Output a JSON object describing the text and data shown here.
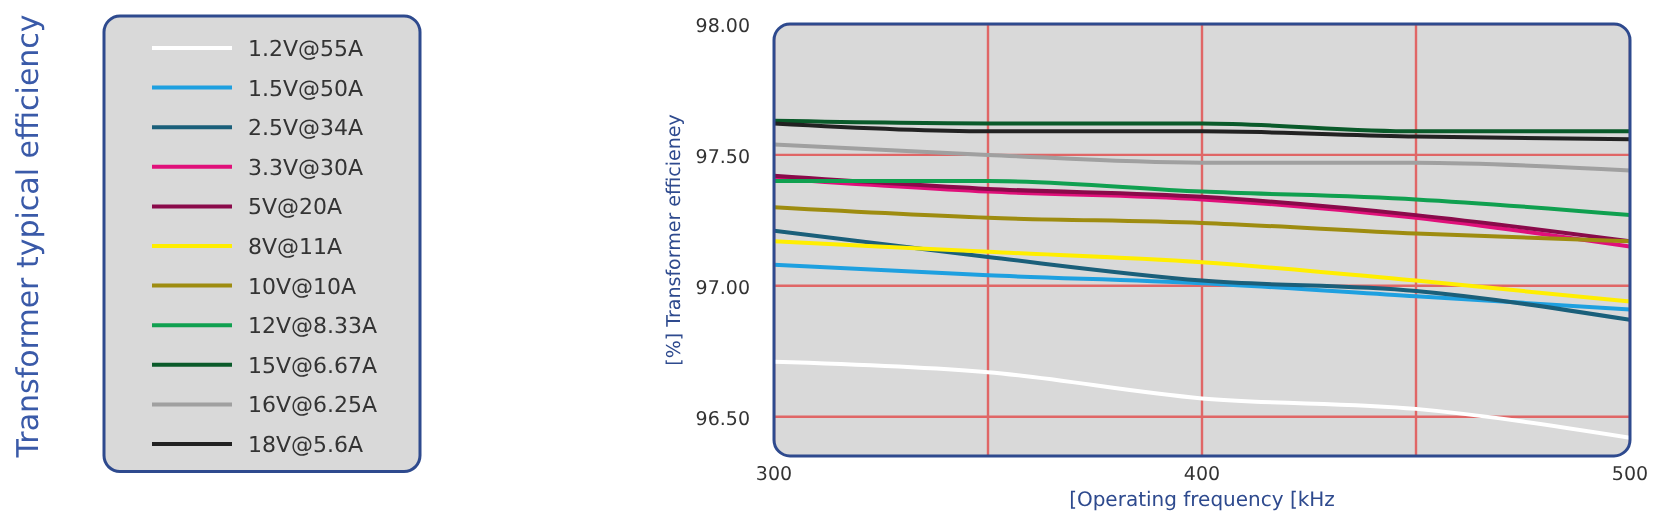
{
  "chart_data": {
    "type": "line",
    "title": "Transformer typical efficiency",
    "xlabel": "[Operating frequency [kHz",
    "ylabel": "[%] Transformer efficieney",
    "x": [
      300,
      350,
      400,
      450,
      500
    ],
    "xlim": [
      300,
      500
    ],
    "xticks": [
      300,
      {
        "value": 350,
        "label": null
      },
      400,
      {
        "value": 450,
        "label": null
      },
      500
    ],
    "ylim": [
      96.35,
      98.0
    ],
    "yticks": [
      {
        "value": 96.5,
        "label": "96.50"
      },
      {
        "value": 97.0,
        "label": "97.00"
      },
      {
        "value": 97.5,
        "label": "97.50"
      },
      {
        "value": 98.0,
        "label": "98.00"
      }
    ],
    "grid": true,
    "legend": "left",
    "marker": "none",
    "line_style": "solid",
    "series": [
      {
        "name": "1.2V@55A",
        "color": "#ffffff",
        "values": [
          96.71,
          96.67,
          96.57,
          96.53,
          96.42
        ]
      },
      {
        "name": "1.5V@50A",
        "color": "#1ea0e0",
        "values": [
          97.08,
          97.04,
          97.01,
          96.96,
          96.91
        ]
      },
      {
        "name": "2.5V@34A",
        "color": "#1a5f7a",
        "values": [
          97.21,
          97.11,
          97.02,
          96.98,
          96.87
        ]
      },
      {
        "name": "3.3V@30A",
        "color": "#e0107a",
        "values": [
          97.41,
          97.36,
          97.33,
          97.26,
          97.15
        ]
      },
      {
        "name": "5V@20A",
        "color": "#8a0a4a",
        "values": [
          97.42,
          97.37,
          97.34,
          97.27,
          97.17
        ]
      },
      {
        "name": "8V@11A",
        "color": "#ffee00",
        "values": [
          97.17,
          97.13,
          97.09,
          97.02,
          96.94
        ]
      },
      {
        "name": "10V@10A",
        "color": "#9e8c10",
        "values": [
          97.3,
          97.26,
          97.24,
          97.2,
          97.17
        ]
      },
      {
        "name": "12V@8.33A",
        "color": "#10a050",
        "values": [
          97.4,
          97.4,
          97.36,
          97.33,
          97.27
        ]
      },
      {
        "name": "15V@6.67A",
        "color": "#0a5a2a",
        "values": [
          97.63,
          97.62,
          97.62,
          97.59,
          97.59
        ]
      },
      {
        "name": "16V@6.25A",
        "color": "#a0a0a0",
        "values": [
          97.54,
          97.5,
          97.47,
          97.47,
          97.44
        ]
      },
      {
        "name": "18V@5.6A",
        "color": "#222222",
        "values": [
          97.62,
          97.59,
          97.59,
          97.57,
          97.56
        ]
      }
    ]
  }
}
